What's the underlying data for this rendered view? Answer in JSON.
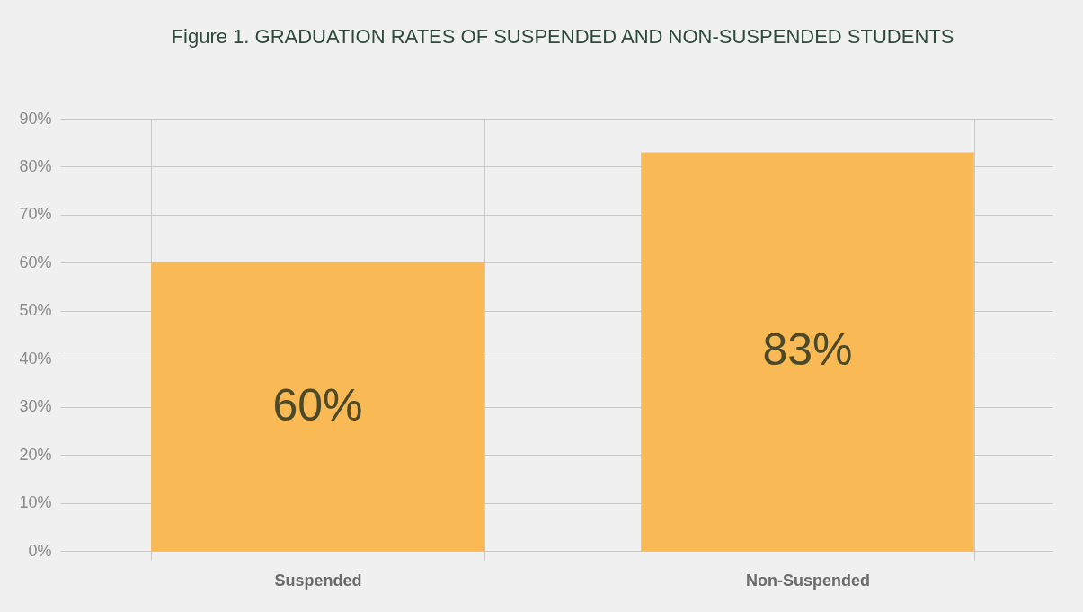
{
  "chart_data": {
    "type": "bar",
    "title": "Figure 1. GRADUATION RATES OF SUSPENDED AND NON-SUSPENDED STUDENTS",
    "categories": [
      "Suspended",
      "Non-Suspended"
    ],
    "values": [
      60,
      83
    ],
    "value_labels": [
      "60%",
      "83%"
    ],
    "color": "#f9b955",
    "ylim": [
      0,
      90
    ],
    "yticks": [
      {
        "value": 0,
        "label": "0%"
      },
      {
        "value": 10,
        "label": "10%"
      },
      {
        "value": 20,
        "label": "20%"
      },
      {
        "value": 30,
        "label": "30%"
      },
      {
        "value": 40,
        "label": "40%"
      },
      {
        "value": 50,
        "label": "50%"
      },
      {
        "value": 60,
        "label": "60%"
      },
      {
        "value": 70,
        "label": "70%"
      },
      {
        "value": 80,
        "label": "80%"
      },
      {
        "value": 90,
        "label": "90%"
      }
    ],
    "grid": "y"
  }
}
